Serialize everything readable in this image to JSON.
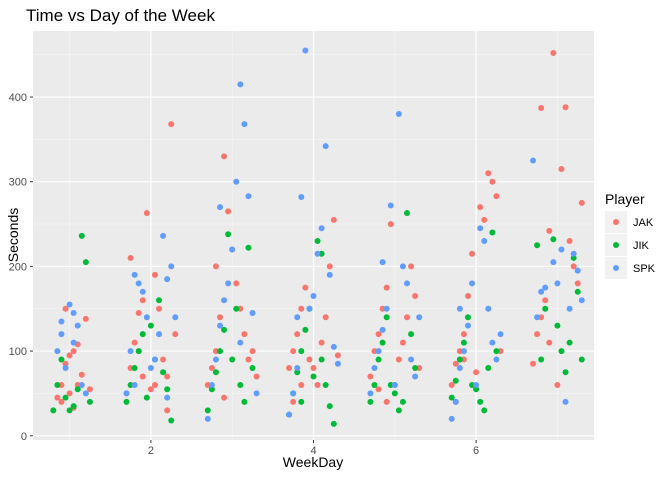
{
  "chart_data": {
    "type": "scatter",
    "title": "Time vs Day of the Week",
    "xlabel": "WeekDay",
    "ylabel": "Seconds",
    "xlim": [
      0.55,
      7.45
    ],
    "ylim": [
      -5,
      478
    ],
    "x_ticks": [
      2,
      4,
      6
    ],
    "y_ticks": [
      0,
      100,
      200,
      300,
      400
    ],
    "jitter": true,
    "grid": true,
    "legend_title": "Player",
    "legend_position": "right",
    "series": [
      {
        "name": "JAK",
        "color": "#F8766D",
        "points": [
          [
            0.85,
            45
          ],
          [
            0.9,
            60
          ],
          [
            0.95,
            85
          ],
          [
            1.0,
            95
          ],
          [
            1.05,
            100
          ],
          [
            1.1,
            108
          ],
          [
            1.15,
            72
          ],
          [
            1.2,
            138
          ],
          [
            0.95,
            150
          ],
          [
            1.0,
            50
          ],
          [
            1.1,
            60
          ],
          [
            1.25,
            55
          ],
          [
            0.9,
            40
          ],
          [
            1.05,
            33
          ],
          [
            1.7,
            50
          ],
          [
            1.75,
            80
          ],
          [
            1.8,
            110
          ],
          [
            1.85,
            145
          ],
          [
            1.9,
            160
          ],
          [
            1.95,
            263
          ],
          [
            2.05,
            190
          ],
          [
            2.1,
            150
          ],
          [
            2.15,
            90
          ],
          [
            2.2,
            70
          ],
          [
            2.25,
            368
          ],
          [
            1.75,
            210
          ],
          [
            1.9,
            70
          ],
          [
            2.0,
            55
          ],
          [
            2.3,
            120
          ],
          [
            1.85,
            100
          ],
          [
            2.05,
            60
          ],
          [
            2.2,
            30
          ],
          [
            2.7,
            60
          ],
          [
            2.75,
            80
          ],
          [
            2.8,
            100
          ],
          [
            2.85,
            140
          ],
          [
            2.9,
            330
          ],
          [
            2.95,
            265
          ],
          [
            3.05,
            180
          ],
          [
            3.1,
            150
          ],
          [
            3.15,
            120
          ],
          [
            3.2,
            90
          ],
          [
            3.25,
            100
          ],
          [
            2.8,
            200
          ],
          [
            3.0,
            220
          ],
          [
            3.3,
            70
          ],
          [
            2.9,
            45
          ],
          [
            3.7,
            80
          ],
          [
            3.75,
            100
          ],
          [
            3.8,
            120
          ],
          [
            3.85,
            150
          ],
          [
            3.9,
            175
          ],
          [
            3.95,
            90
          ],
          [
            4.05,
            60
          ],
          [
            4.1,
            110
          ],
          [
            4.15,
            140
          ],
          [
            4.2,
            200
          ],
          [
            4.25,
            255
          ],
          [
            3.85,
            60
          ],
          [
            4.0,
            80
          ],
          [
            4.3,
            95
          ],
          [
            3.75,
            40
          ],
          [
            4.7,
            70
          ],
          [
            4.75,
            100
          ],
          [
            4.8,
            120
          ],
          [
            4.85,
            150
          ],
          [
            4.9,
            175
          ],
          [
            4.95,
            250
          ],
          [
            5.05,
            90
          ],
          [
            5.1,
            110
          ],
          [
            5.15,
            140
          ],
          [
            5.2,
            200
          ],
          [
            5.25,
            165
          ],
          [
            4.8,
            55
          ],
          [
            5.0,
            60
          ],
          [
            5.3,
            80
          ],
          [
            4.9,
            40
          ],
          [
            5.7,
            60
          ],
          [
            5.75,
            85
          ],
          [
            5.8,
            100
          ],
          [
            5.85,
            120
          ],
          [
            5.9,
            165
          ],
          [
            5.95,
            215
          ],
          [
            6.05,
            270
          ],
          [
            6.1,
            255
          ],
          [
            6.15,
            310
          ],
          [
            6.2,
            300
          ],
          [
            6.25,
            283
          ],
          [
            5.85,
            90
          ],
          [
            6.0,
            75
          ],
          [
            6.3,
            100
          ],
          [
            5.75,
            40
          ],
          [
            6.7,
            85
          ],
          [
            6.75,
            120
          ],
          [
            6.8,
            140
          ],
          [
            6.85,
            160
          ],
          [
            6.9,
            242
          ],
          [
            6.95,
            452
          ],
          [
            7.05,
            315
          ],
          [
            7.1,
            388
          ],
          [
            7.15,
            230
          ],
          [
            7.2,
            200
          ],
          [
            7.25,
            180
          ],
          [
            6.8,
            387
          ],
          [
            7.0,
            60
          ],
          [
            7.3,
            275
          ],
          [
            6.9,
            110
          ]
        ]
      },
      {
        "name": "JIK",
        "color": "#00BA38",
        "points": [
          [
            0.8,
            30
          ],
          [
            0.85,
            60
          ],
          [
            0.9,
            90
          ],
          [
            1.0,
            30
          ],
          [
            1.05,
            35
          ],
          [
            1.1,
            55
          ],
          [
            1.15,
            236
          ],
          [
            1.2,
            205
          ],
          [
            1.25,
            40
          ],
          [
            0.95,
            45
          ],
          [
            1.7,
            40
          ],
          [
            1.75,
            60
          ],
          [
            1.8,
            80
          ],
          [
            1.85,
            100
          ],
          [
            1.9,
            120
          ],
          [
            2.0,
            130
          ],
          [
            2.1,
            160
          ],
          [
            2.15,
            75
          ],
          [
            2.2,
            55
          ],
          [
            2.25,
            18
          ],
          [
            1.95,
            45
          ],
          [
            2.05,
            90
          ],
          [
            2.7,
            30
          ],
          [
            2.75,
            55
          ],
          [
            2.8,
            75
          ],
          [
            2.85,
            100
          ],
          [
            2.9,
            125
          ],
          [
            2.95,
            238
          ],
          [
            3.05,
            150
          ],
          [
            3.1,
            60
          ],
          [
            3.15,
            40
          ],
          [
            3.2,
            222
          ],
          [
            3.25,
            80
          ],
          [
            3.0,
            90
          ],
          [
            3.7,
            25
          ],
          [
            3.75,
            50
          ],
          [
            3.8,
            75
          ],
          [
            3.85,
            100
          ],
          [
            3.9,
            125
          ],
          [
            3.95,
            150
          ],
          [
            4.05,
            230
          ],
          [
            4.1,
            215
          ],
          [
            4.15,
            60
          ],
          [
            4.2,
            35
          ],
          [
            4.25,
            14
          ],
          [
            4.0,
            70
          ],
          [
            3.85,
            40
          ],
          [
            4.1,
            90
          ],
          [
            4.7,
            40
          ],
          [
            4.75,
            60
          ],
          [
            4.8,
            90
          ],
          [
            4.85,
            110
          ],
          [
            4.9,
            140
          ],
          [
            4.95,
            60
          ],
          [
            5.05,
            30
          ],
          [
            5.1,
            40
          ],
          [
            5.15,
            263
          ],
          [
            5.2,
            120
          ],
          [
            5.25,
            80
          ],
          [
            5.0,
            50
          ],
          [
            5.7,
            45
          ],
          [
            5.75,
            65
          ],
          [
            5.8,
            90
          ],
          [
            5.85,
            110
          ],
          [
            5.9,
            140
          ],
          [
            5.95,
            60
          ],
          [
            6.05,
            40
          ],
          [
            6.1,
            30
          ],
          [
            6.15,
            80
          ],
          [
            6.2,
            240
          ],
          [
            6.25,
            100
          ],
          [
            6.0,
            55
          ],
          [
            6.75,
            225
          ],
          [
            6.8,
            90
          ],
          [
            6.85,
            150
          ],
          [
            6.95,
            232
          ],
          [
            7.05,
            100
          ],
          [
            7.1,
            75
          ],
          [
            7.15,
            110
          ],
          [
            7.2,
            210
          ],
          [
            7.25,
            170
          ],
          [
            7.3,
            90
          ],
          [
            7.0,
            130
          ]
        ]
      },
      {
        "name": "SPK",
        "color": "#619CFF",
        "points": [
          [
            0.85,
            100
          ],
          [
            0.9,
            120
          ],
          [
            0.95,
            80
          ],
          [
            1.0,
            155
          ],
          [
            1.05,
            145
          ],
          [
            1.1,
            130
          ],
          [
            1.15,
            60
          ],
          [
            1.2,
            50
          ],
          [
            0.9,
            135
          ],
          [
            1.05,
            110
          ],
          [
            1.7,
            50
          ],
          [
            1.75,
            100
          ],
          [
            1.8,
            190
          ],
          [
            1.85,
            180
          ],
          [
            1.9,
            170
          ],
          [
            1.95,
            140
          ],
          [
            2.05,
            90
          ],
          [
            2.1,
            120
          ],
          [
            2.15,
            236
          ],
          [
            2.2,
            185
          ],
          [
            2.25,
            200
          ],
          [
            2.3,
            140
          ],
          [
            1.8,
            60
          ],
          [
            2.0,
            80
          ],
          [
            2.2,
            45
          ],
          [
            2.7,
            20
          ],
          [
            2.75,
            60
          ],
          [
            2.8,
            90
          ],
          [
            2.85,
            130
          ],
          [
            2.9,
            160
          ],
          [
            2.95,
            180
          ],
          [
            3.05,
            300
          ],
          [
            3.1,
            415
          ],
          [
            3.15,
            368
          ],
          [
            3.2,
            283
          ],
          [
            3.25,
            145
          ],
          [
            2.85,
            270
          ],
          [
            3.0,
            220
          ],
          [
            3.1,
            110
          ],
          [
            3.3,
            50
          ],
          [
            3.7,
            25
          ],
          [
            3.75,
            50
          ],
          [
            3.8,
            80
          ],
          [
            3.85,
            282
          ],
          [
            3.9,
            455
          ],
          [
            3.95,
            150
          ],
          [
            4.05,
            215
          ],
          [
            4.1,
            245
          ],
          [
            4.15,
            342
          ],
          [
            4.2,
            190
          ],
          [
            4.25,
            105
          ],
          [
            3.8,
            140
          ],
          [
            4.0,
            165
          ],
          [
            4.3,
            85
          ],
          [
            4.7,
            50
          ],
          [
            4.75,
            80
          ],
          [
            4.8,
            100
          ],
          [
            4.85,
            125
          ],
          [
            4.9,
            150
          ],
          [
            4.95,
            272
          ],
          [
            5.05,
            380
          ],
          [
            5.1,
            200
          ],
          [
            5.15,
            180
          ],
          [
            5.2,
            90
          ],
          [
            5.25,
            70
          ],
          [
            4.85,
            205
          ],
          [
            5.0,
            60
          ],
          [
            5.3,
            140
          ],
          [
            5.7,
            20
          ],
          [
            5.75,
            40
          ],
          [
            5.8,
            80
          ],
          [
            5.85,
            100
          ],
          [
            5.9,
            130
          ],
          [
            5.95,
            180
          ],
          [
            6.05,
            245
          ],
          [
            6.1,
            230
          ],
          [
            6.15,
            150
          ],
          [
            6.2,
            110
          ],
          [
            6.25,
            90
          ],
          [
            6.0,
            60
          ],
          [
            5.8,
            150
          ],
          [
            6.3,
            120
          ],
          [
            6.7,
            325
          ],
          [
            6.75,
            140
          ],
          [
            6.8,
            170
          ],
          [
            6.85,
            175
          ],
          [
            6.95,
            205
          ],
          [
            7.05,
            220
          ],
          [
            7.1,
            40
          ],
          [
            7.15,
            150
          ],
          [
            7.2,
            215
          ],
          [
            7.25,
            195
          ],
          [
            7.3,
            160
          ],
          [
            7.0,
            180
          ]
        ]
      }
    ]
  }
}
